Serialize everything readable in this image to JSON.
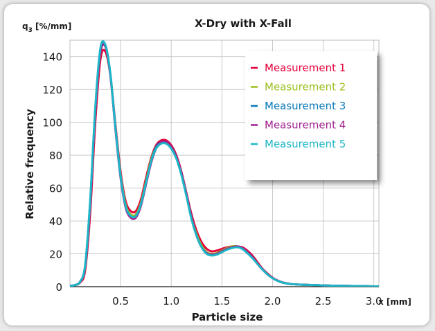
{
  "chart_data": {
    "type": "line",
    "title": "X-Dry with X-Fall",
    "ylabel": "Relative frequency",
    "xlabel": "Particle size",
    "y_unit_label": "q",
    "y_unit_sub": "3",
    "y_unit_rest": " [%/mm]",
    "x_unit_label": "x [mm]",
    "xlim": [
      0,
      3.05
    ],
    "ylim": [
      0,
      150
    ],
    "x_ticks": [
      {
        "value": 0.5,
        "label": "0.5"
      },
      {
        "value": 1.0,
        "label": "1.0"
      },
      {
        "value": 1.5,
        "label": "1.5"
      },
      {
        "value": 2.0,
        "label": "2.0"
      },
      {
        "value": 2.5,
        "label": "2.5"
      },
      {
        "value": 3.0,
        "label": "3.0"
      }
    ],
    "y_ticks": [
      {
        "value": 0,
        "label": "0"
      },
      {
        "value": 20,
        "label": "20"
      },
      {
        "value": 40,
        "label": "40"
      },
      {
        "value": 60,
        "label": "60"
      },
      {
        "value": 80,
        "label": "80"
      },
      {
        "value": 100,
        "label": "100"
      },
      {
        "value": 120,
        "label": "120"
      },
      {
        "value": 140,
        "label": "140"
      }
    ],
    "grid": true,
    "legend_position": "top-right",
    "x": [
      0.0,
      0.05,
      0.1,
      0.15,
      0.2,
      0.25,
      0.3,
      0.35,
      0.4,
      0.45,
      0.5,
      0.55,
      0.6,
      0.65,
      0.7,
      0.75,
      0.8,
      0.85,
      0.9,
      0.95,
      1.0,
      1.05,
      1.1,
      1.15,
      1.2,
      1.25,
      1.3,
      1.35,
      1.4,
      1.45,
      1.5,
      1.55,
      1.6,
      1.65,
      1.7,
      1.75,
      1.8,
      1.85,
      1.9,
      1.95,
      2.0,
      2.05,
      2.1,
      2.15,
      2.2,
      2.3,
      2.4,
      2.5,
      2.6,
      2.7,
      2.8,
      2.9,
      3.0,
      3.05
    ],
    "series": [
      {
        "name": "Measurement 1",
        "color": "#e4003a",
        "values": [
          0.5,
          1,
          2.5,
          10,
          45,
          100,
          138,
          143,
          128,
          98,
          70,
          52,
          46,
          46,
          53,
          66,
          78,
          86,
          89,
          89,
          86,
          80,
          70,
          57,
          44,
          34,
          27,
          23,
          21.5,
          22,
          23,
          24,
          24.5,
          24.5,
          24,
          22,
          19,
          15,
          11,
          8,
          5.5,
          3.8,
          2.6,
          2,
          1.5,
          1.2,
          1,
          0.8,
          0.6,
          0.5,
          0.4,
          0.3,
          0.2,
          0.2
        ]
      },
      {
        "name": "Measurement 2",
        "color": "#9bbf1e",
        "values": [
          0.5,
          1,
          3,
          12,
          50,
          106,
          142,
          146,
          128,
          96,
          68,
          50,
          44,
          44,
          51,
          64,
          77,
          85,
          88,
          88,
          85,
          79,
          69,
          56,
          42,
          32,
          25,
          21,
          20,
          20.5,
          22,
          23.5,
          24.5,
          24.5,
          23.5,
          21,
          18,
          14,
          10.5,
          7.5,
          5.2,
          3.6,
          2.5,
          1.9,
          1.5,
          1.2,
          1,
          0.8,
          0.6,
          0.5,
          0.4,
          0.3,
          0.2,
          0.2
        ]
      },
      {
        "name": "Measurement 3",
        "color": "#0a78b8",
        "values": [
          0.5,
          1,
          3,
          13,
          52,
          108,
          144,
          147,
          129,
          96,
          67,
          49,
          43,
          43,
          50,
          63,
          76,
          85,
          88,
          88,
          85,
          79,
          69,
          56,
          42,
          31,
          24,
          20,
          19.5,
          20,
          21.5,
          23,
          24,
          24.5,
          23.5,
          21,
          18,
          14,
          10.5,
          7.5,
          5.2,
          3.6,
          2.5,
          1.9,
          1.5,
          1.2,
          1,
          0.8,
          0.6,
          0.5,
          0.4,
          0.3,
          0.2,
          0.2
        ]
      },
      {
        "name": "Measurement 4",
        "color": "#a0208e",
        "values": [
          0.5,
          1,
          3,
          12,
          50,
          106,
          142,
          146,
          128,
          95,
          66,
          48,
          42,
          42,
          49,
          62,
          75,
          84,
          88,
          88,
          85,
          79,
          69,
          56,
          42,
          31,
          24,
          20.5,
          19.5,
          20,
          21.5,
          23,
          24,
          24.5,
          23.5,
          21,
          18,
          14,
          10.5,
          7.5,
          5.2,
          3.6,
          2.5,
          1.9,
          1.5,
          1.2,
          1,
          0.8,
          0.6,
          0.5,
          0.4,
          0.3,
          0.2,
          0.2
        ]
      },
      {
        "name": "Measurement 5",
        "color": "#1cb6c8",
        "values": [
          0.5,
          1,
          3,
          13,
          53,
          109,
          145,
          147,
          129,
          96,
          67,
          49,
          43,
          43,
          50,
          63,
          76,
          84,
          87,
          87,
          84,
          78,
          68,
          55,
          41,
          31,
          24,
          20,
          19,
          19.5,
          21,
          22.5,
          23.5,
          24,
          23,
          20.5,
          17.5,
          14,
          10.5,
          7.5,
          5.2,
          3.6,
          2.5,
          1.9,
          1.5,
          1.2,
          1,
          0.8,
          0.6,
          0.5,
          0.4,
          0.3,
          0.2,
          0.2
        ]
      }
    ]
  }
}
